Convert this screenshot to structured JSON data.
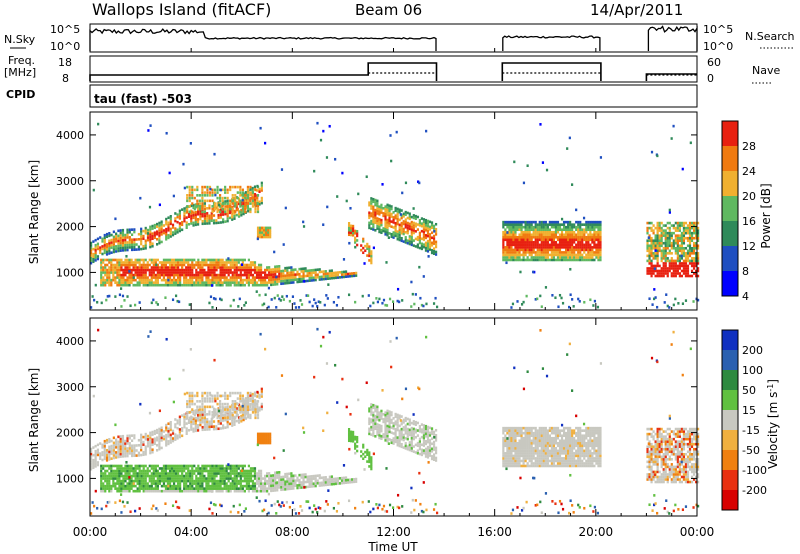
{
  "header": {
    "station": "Wallops Island (fitACF)",
    "beam": "Beam 06",
    "date": "14/Apr/2011"
  },
  "panels": {
    "nsky_label": "N.Sky",
    "nsky_top_tick": "10^5",
    "nsky_bottom_tick": "10^0",
    "nsearch_label": "N.Search",
    "nsearch_top_tick": "10^5",
    "nsearch_bottom_tick": "10^0",
    "freq_label_1": "Freq.",
    "freq_label_2": "[MHz]",
    "freq_top_tick": "18",
    "freq_bottom_tick": "8",
    "nave_label": "Nave",
    "nave_top_tick": "60",
    "nave_bottom_tick": "0",
    "cpid_label": "CPID",
    "cpid_value": "tau (fast) -503"
  },
  "chart_data": [
    {
      "type": "heatmap",
      "title": "Power",
      "ylabel": "Slant Range [km]",
      "xlabel": "",
      "colorbar_label": "Power [dB]",
      "colorbar_ticks": [
        "4",
        "8",
        "12",
        "16",
        "20",
        "24",
        "28"
      ],
      "colorbar_colors": [
        "#0000ff",
        "#1f4fc0",
        "#2f8a5a",
        "#5fb860",
        "#f0b030",
        "#f07a10",
        "#e82010"
      ],
      "x_range_hours": [
        0,
        24
      ],
      "ylim": [
        180,
        4500
      ],
      "y_ticks": [
        "1000",
        "2000",
        "3000",
        "4000"
      ],
      "data_gaps_hours": [
        [
          13.7,
          16.3
        ],
        [
          20.2,
          22
        ]
      ]
    },
    {
      "type": "heatmap",
      "title": "Velocity",
      "ylabel": "Slant Range [km]",
      "xlabel": "Time UT",
      "colorbar_label": "Velocity [m s^-1]",
      "colorbar_ticks": [
        "200",
        "100",
        "50",
        "15",
        "-15",
        "-50",
        "-100",
        "-200"
      ],
      "colorbar_colors": [
        "#1030c0",
        "#2a60b0",
        "#2e8a40",
        "#60c040",
        "#c8c8c0",
        "#f0b040",
        "#f08010",
        "#e83010",
        "#d80000"
      ],
      "x_range_hours": [
        0,
        24
      ],
      "x_ticks": [
        "00:00",
        "04:00",
        "08:00",
        "12:00",
        "16:00",
        "20:00",
        "00:00"
      ],
      "ylim": [
        180,
        4500
      ],
      "y_ticks": [
        "1000",
        "2000",
        "3000",
        "4000"
      ]
    }
  ],
  "colors": {
    "ground_scatter": "#c8c8c0",
    "background": "#ffffff",
    "axes": "#000000"
  }
}
